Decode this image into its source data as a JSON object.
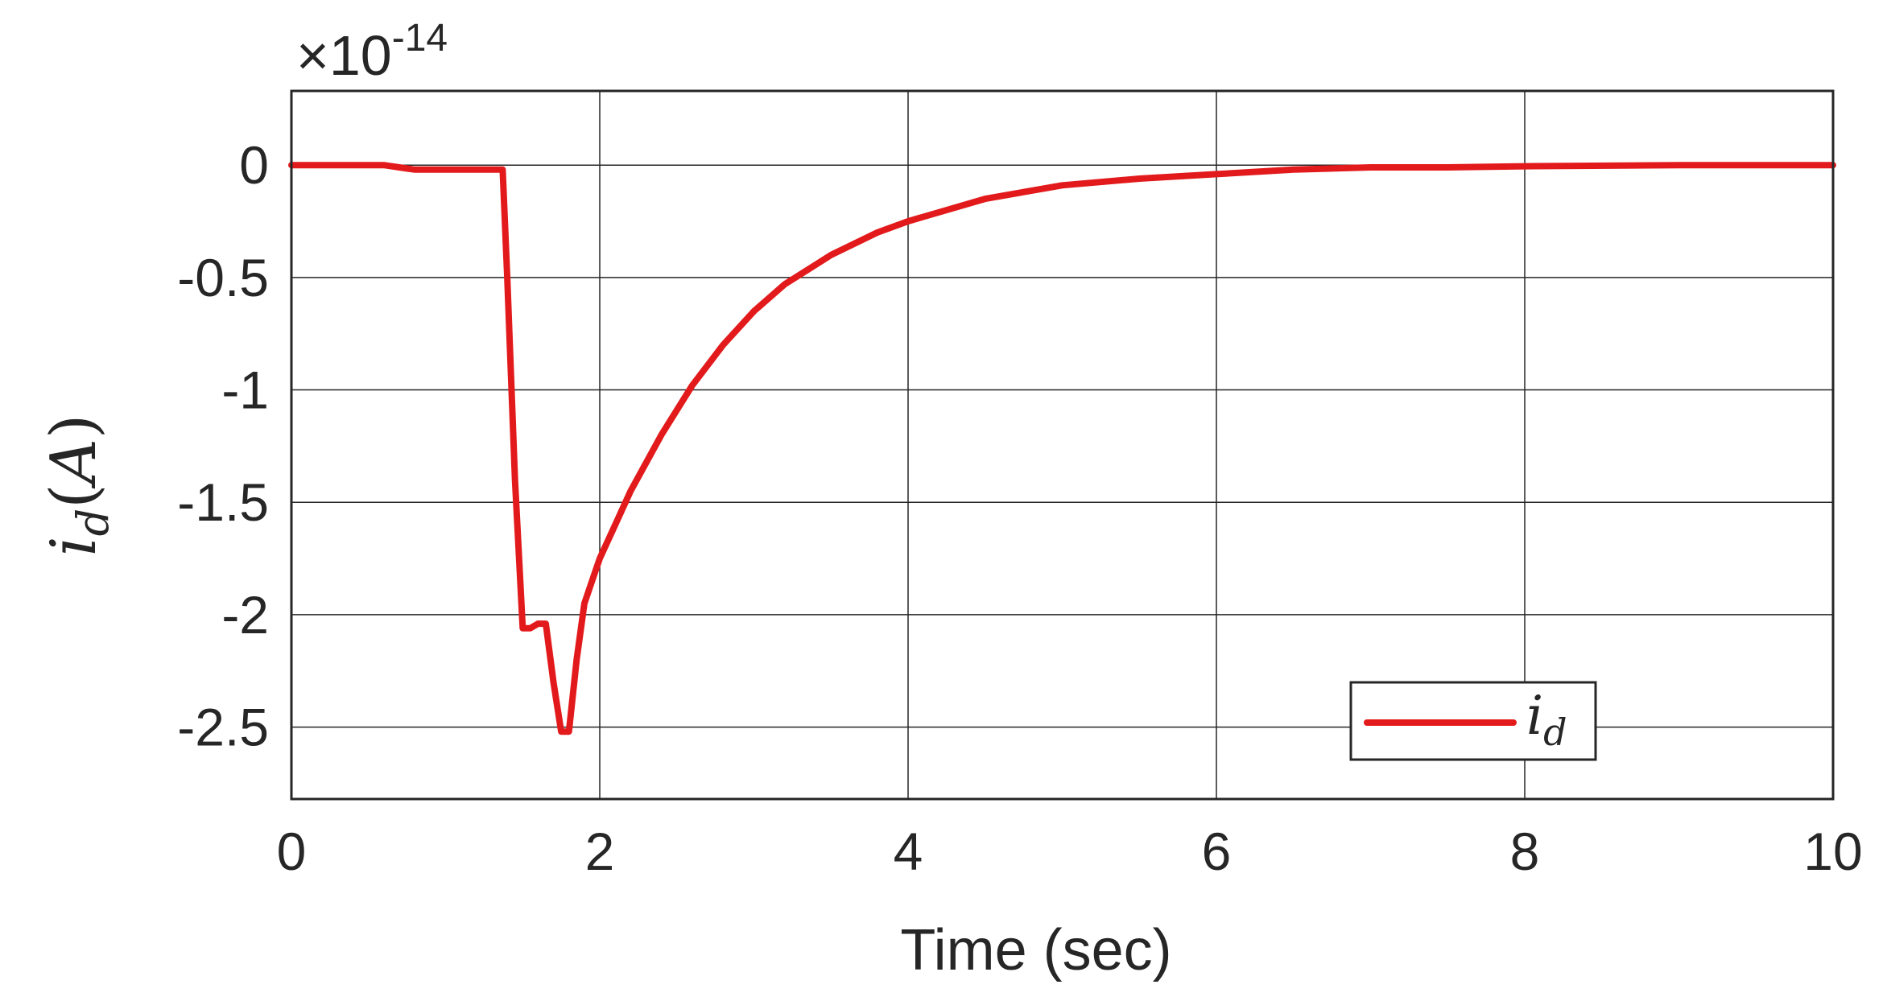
{
  "chart_data": {
    "type": "line",
    "title": "",
    "xlabel": "Time (sec)",
    "ylabel": "i_d(A)",
    "y_exponent_label": "×10^-14",
    "y_multiplier_text": "×10",
    "y_exponent_text": "-14",
    "xlim": [
      0,
      10
    ],
    "ylim": [
      -2.82,
      0.33
    ],
    "xticks": [
      0,
      2,
      4,
      6,
      8,
      10
    ],
    "yticks": [
      0,
      -0.5,
      -1,
      -1.5,
      -2,
      -2.5
    ],
    "xtick_labels": [
      "0",
      "2",
      "4",
      "6",
      "8",
      "10"
    ],
    "ytick_labels": [
      "0",
      "-0.5",
      "-1",
      "-1.5",
      "-2",
      "-2.5"
    ],
    "grid": true,
    "legend": {
      "position": "bottom-right",
      "entries": [
        "i_d"
      ]
    },
    "series": [
      {
        "name": "i_d",
        "color": "#e31a1c",
        "x": [
          0,
          0.5,
          0.6,
          0.7,
          0.8,
          1.0,
          1.2,
          1.37,
          1.4,
          1.45,
          1.5,
          1.55,
          1.6,
          1.65,
          1.7,
          1.75,
          1.8,
          1.85,
          1.9,
          1.95,
          2.0,
          2.1,
          2.2,
          2.4,
          2.6,
          2.8,
          3.0,
          3.2,
          3.5,
          3.8,
          4.0,
          4.5,
          5.0,
          5.5,
          6.0,
          6.5,
          7.0,
          7.5,
          8.0,
          9.0,
          10.0
        ],
        "values": [
          0,
          0,
          0,
          -0.01,
          -0.02,
          -0.02,
          -0.02,
          -0.02,
          -0.5,
          -1.4,
          -2.06,
          -2.06,
          -2.04,
          -2.04,
          -2.3,
          -2.52,
          -2.52,
          -2.2,
          -1.95,
          -1.85,
          -1.75,
          -1.6,
          -1.45,
          -1.2,
          -0.98,
          -0.8,
          -0.65,
          -0.53,
          -0.4,
          -0.3,
          -0.25,
          -0.15,
          -0.09,
          -0.06,
          -0.04,
          -0.02,
          -0.01,
          -0.01,
          -0.005,
          0,
          0
        ]
      }
    ]
  }
}
